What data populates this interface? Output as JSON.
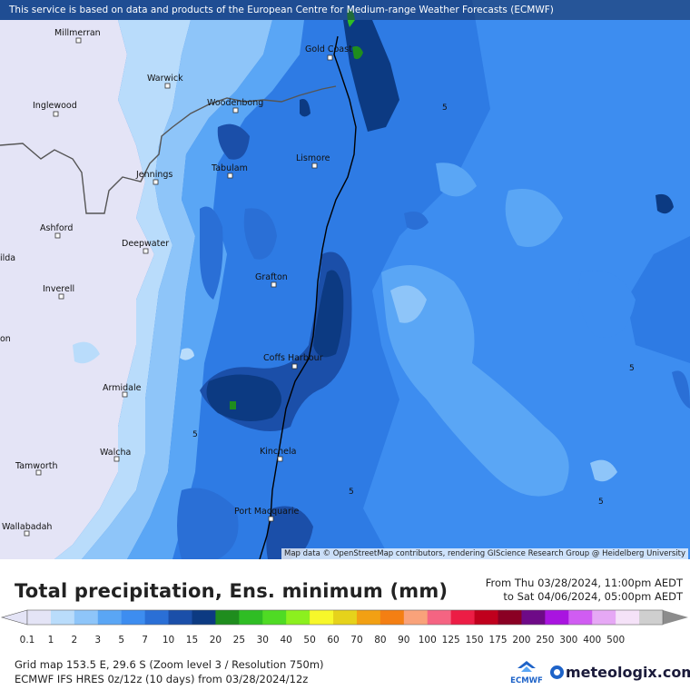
{
  "attribution_top": "This service is based on data and products of the European Centre for Medium-range Weather Forecasts (ECMWF)",
  "attribution_bottom": "Map data © OpenStreetMap contributors, rendering GIScience Research Group @ Heidelberg University",
  "title": "Total precipitation, Ens. minimum (mm)",
  "period": {
    "from": "From Thu 03/28/2024, 11:00pm AEDT",
    "to": "to Sat 04/06/2024, 05:00pm AEDT"
  },
  "legend": {
    "values": [
      "0.1",
      "1",
      "2",
      "3",
      "5",
      "7",
      "10",
      "15",
      "20",
      "25",
      "30",
      "40",
      "50",
      "60",
      "70",
      "80",
      "90",
      "100",
      "125",
      "150",
      "175",
      "200",
      "250",
      "300",
      "400",
      "500"
    ],
    "colors": [
      "#e4e4f6",
      "#b9dcfb",
      "#8ec5f9",
      "#5aa6f5",
      "#3d8df0",
      "#2a6fd6",
      "#1b4fa9",
      "#0c3a82",
      "#1f8d1e",
      "#2fbd24",
      "#4fdb24",
      "#8cf01e",
      "#f7f72a",
      "#e6d21b",
      "#f2a013",
      "#f47f13",
      "#f9a27a",
      "#f56482",
      "#ec1d45",
      "#c0001d",
      "#8a0023",
      "#6e0a87",
      "#a914e0",
      "#d05cf2",
      "#e6a8f5",
      "#f5e2f8",
      "#cfcfcf"
    ]
  },
  "info": {
    "grid": "Grid map 153.5 E, 29.6 S (Zoom level 3 / Resolution 750m)",
    "model": "ECMWF IFS HRES 0z/12z (10 days) from  03/28/2024/12z"
  },
  "ecmwf_logo_text": "ECMWF",
  "brand": "meteologix.com",
  "cities": [
    {
      "name": "Millmerran",
      "id": "millmerran"
    },
    {
      "name": "Gold Coast",
      "id": "gold-coast"
    },
    {
      "name": "Warwick",
      "id": "warwick"
    },
    {
      "name": "Inglewood",
      "id": "inglewood"
    },
    {
      "name": "Woodenbong",
      "id": "woodenbong"
    },
    {
      "name": "Lismore",
      "id": "lismore"
    },
    {
      "name": "Tabulam",
      "id": "tabulam"
    },
    {
      "name": "Jennings",
      "id": "jennings"
    },
    {
      "name": "Ashford",
      "id": "ashford"
    },
    {
      "name": "Deepwater",
      "id": "deepwater"
    },
    {
      "name": "Grafton",
      "id": "grafton"
    },
    {
      "name": "Inverell",
      "id": "inverell"
    },
    {
      "name": "Coffs Harbour",
      "id": "coffs-harbour"
    },
    {
      "name": "Armidale",
      "id": "armidale"
    },
    {
      "name": "Kinchela",
      "id": "kinchela"
    },
    {
      "name": "Walcha",
      "id": "walcha"
    },
    {
      "name": "Tamworth",
      "id": "tamworth"
    },
    {
      "name": "Port Macquarie",
      "id": "port-macquarie"
    },
    {
      "name": "Wallabadah",
      "id": "wallabadah"
    },
    {
      "name": "ilda",
      "id": "edge-ilda"
    },
    {
      "name": "on",
      "id": "edge-on"
    }
  ],
  "contour_labels": [
    "5",
    "5",
    "5",
    "5",
    "5"
  ]
}
